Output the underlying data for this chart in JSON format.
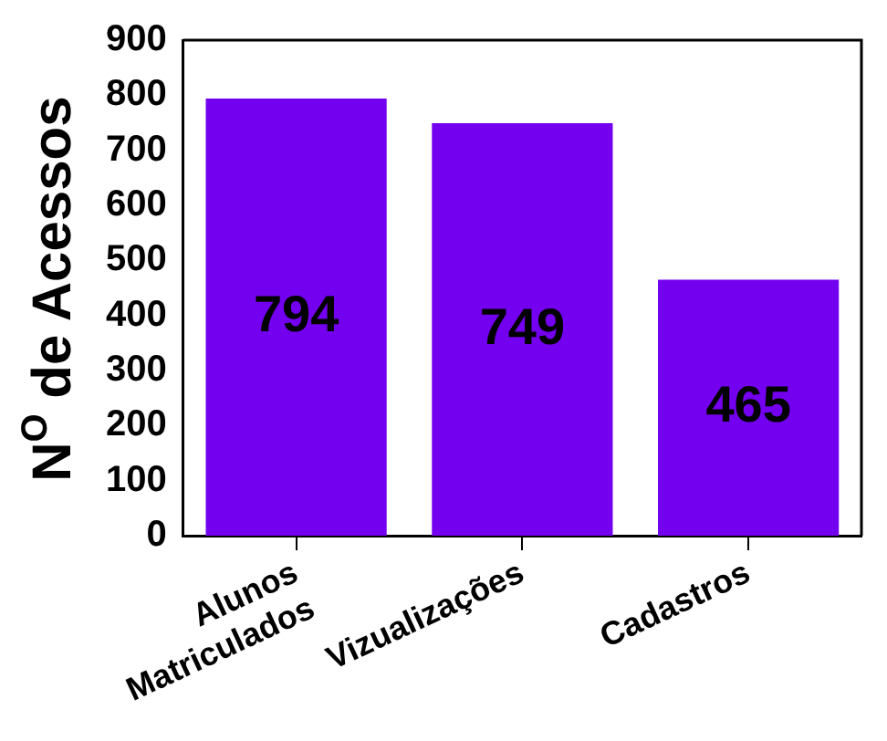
{
  "chart_data": {
    "type": "bar",
    "ylabel": "N$^{O}$ de Acessos",
    "categories": [
      "Alunos Matriculados",
      "Vizualizações",
      "Cadastros"
    ],
    "values": [
      794,
      749,
      465
    ],
    "color": "#7300ee",
    "ylim": [
      0,
      900
    ],
    "yticks": [
      0,
      100,
      200,
      300,
      400,
      500,
      600,
      700,
      800,
      900
    ],
    "grid": false,
    "data_labels": true
  }
}
